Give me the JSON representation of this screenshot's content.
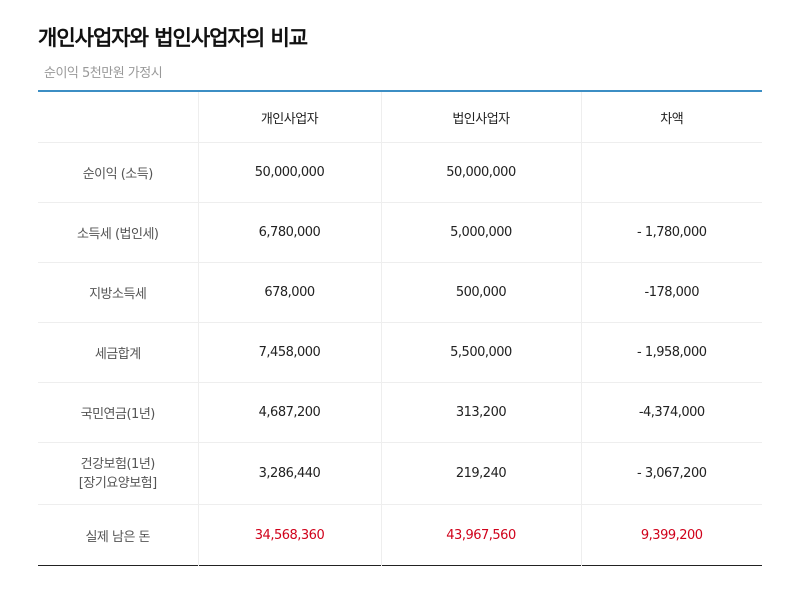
{
  "title": "개인사업자와 법인사업자의 비교",
  "subtitle": "순이익 5천만원 가정시",
  "table": {
    "headers": [
      "",
      "개인사업자",
      "법인사업자",
      "차액"
    ],
    "rows": [
      {
        "label": "순이익 (소득)",
        "individual": "50,000,000",
        "corporate": "50,000,000",
        "diff": ""
      },
      {
        "label": "소득세 (법인세)",
        "individual": "6,780,000",
        "corporate": "5,000,000",
        "diff": "- 1,780,000"
      },
      {
        "label": "지방소득세",
        "individual": "678,000",
        "corporate": "500,000",
        "diff": "-178,000"
      },
      {
        "label": "세금합계",
        "individual": "7,458,000",
        "corporate": "5,500,000",
        "diff": "- 1,958,000"
      },
      {
        "label": "국민연금(1년)",
        "individual": "4,687,200",
        "corporate": "313,200",
        "diff": "-4,374,000"
      },
      {
        "label_line1": "건강보험(1년)",
        "label_line2": "[장기요양보험]",
        "individual": "3,286,440",
        "corporate": "219,240",
        "diff": "- 3,067,200"
      },
      {
        "label": "실제 남은 돈",
        "individual": "34,568,360",
        "corporate": "43,967,560",
        "diff": "9,399,200"
      }
    ]
  },
  "colors": {
    "accent_line": "#3c8ec4",
    "highlight_red": "#d0021b"
  }
}
